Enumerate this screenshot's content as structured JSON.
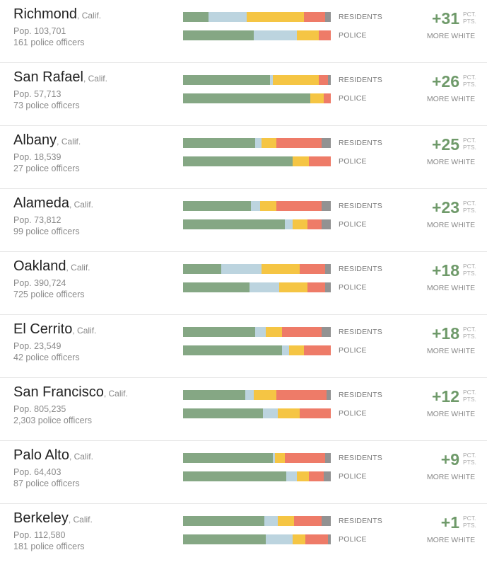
{
  "labels": {
    "residents": "RESIDENTS",
    "police": "POLICE",
    "pct": "PCT.",
    "pts": "PTS.",
    "more_white": "MORE WHITE"
  },
  "colors": {
    "white": "#85a784",
    "asian": "#bcd4df",
    "hispanic": "#f5c544",
    "black": "#ee7b68",
    "other": "#929292",
    "difference": "#6f9a6a"
  },
  "chart_data": {
    "type": "bar",
    "orientation": "horizontal-stacked-percent",
    "segment_order": [
      "white",
      "asian",
      "hispanic",
      "black",
      "other"
    ],
    "rows": [
      {
        "city": "Richmond",
        "state": ", Calif.",
        "population": "Pop. 103,701",
        "officers": "161 police officers",
        "difference": "+31",
        "residents": [
          17,
          26,
          39,
          14,
          4
        ],
        "police": [
          48,
          29,
          15,
          8,
          0
        ]
      },
      {
        "city": "San Rafael",
        "state": ", Calif.",
        "population": "Pop. 57,713",
        "officers": "73 police officers",
        "difference": "+26",
        "residents": [
          59,
          2,
          31,
          6,
          2
        ],
        "police": [
          86,
          0,
          9,
          5,
          0
        ]
      },
      {
        "city": "Albany",
        "state": ", Calif.",
        "population": "Pop. 18,539",
        "officers": "27 police officers",
        "difference": "+25",
        "residents": [
          49,
          4,
          10,
          31,
          6
        ],
        "police": [
          74,
          0,
          11,
          15,
          0
        ]
      },
      {
        "city": "Alameda",
        "state": ", Calif.",
        "population": "Pop. 73,812",
        "officers": "99 police officers",
        "difference": "+23",
        "residents": [
          46,
          6,
          11,
          31,
          6
        ],
        "police": [
          69,
          5,
          10,
          10,
          6
        ]
      },
      {
        "city": "Oakland",
        "state": ", Calif.",
        "population": "Pop. 390,724",
        "officers": "725 police officers",
        "difference": "+18",
        "residents": [
          26,
          27,
          26,
          17,
          4
        ],
        "police": [
          45,
          20,
          19,
          12,
          4
        ]
      },
      {
        "city": "El Cerrito",
        "state": ", Calif.",
        "population": "Pop. 23,549",
        "officers": "42 police officers",
        "difference": "+18",
        "residents": [
          49,
          7,
          11,
          27,
          6
        ],
        "police": [
          67,
          5,
          10,
          18,
          0
        ]
      },
      {
        "city": "San Francisco",
        "state": ", Calif.",
        "population": "Pop. 805,235",
        "officers": "2,303 police officers",
        "difference": "+12",
        "residents": [
          42,
          6,
          15,
          34,
          3
        ],
        "police": [
          54,
          10,
          15,
          21,
          0
        ]
      },
      {
        "city": "Palo Alto",
        "state": ", Calif.",
        "population": "Pop. 64,403",
        "officers": "87 police officers",
        "difference": "+9",
        "residents": [
          61,
          1,
          7,
          27,
          4
        ],
        "police": [
          70,
          7,
          8,
          10,
          5
        ]
      },
      {
        "city": "Berkeley",
        "state": ", Calif.",
        "population": "Pop. 112,580",
        "officers": "181 police officers",
        "difference": "+1",
        "residents": [
          55,
          9,
          11,
          19,
          6
        ],
        "police": [
          56,
          18,
          9,
          15,
          2
        ]
      }
    ]
  }
}
